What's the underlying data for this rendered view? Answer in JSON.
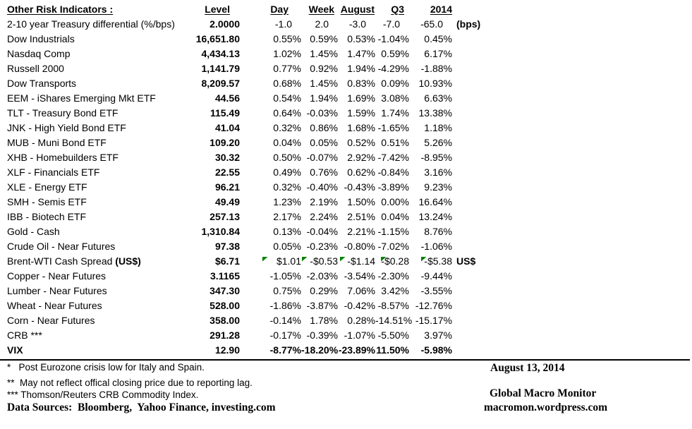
{
  "title": "Other Risk Indicators :",
  "columns": [
    "Level",
    "Day",
    "Week",
    "August",
    "Q3",
    "2014"
  ],
  "rows": [
    {
      "label": "2-10 year Treasury differential (%/bps)",
      "level": "2.0000",
      "values": [
        "-1.0",
        "2.0",
        "-3.0",
        "-7.0",
        "-65.0"
      ],
      "unit": "(bps)"
    },
    {
      "label": "Dow Industrials",
      "level": "16,651.80",
      "values": [
        "0.55%",
        "0.59%",
        "0.53%",
        "-1.04%",
        "0.45%"
      ]
    },
    {
      "label": "Nasdaq Comp",
      "level": "4,434.13",
      "values": [
        "1.02%",
        "1.45%",
        "1.47%",
        "0.59%",
        "6.17%"
      ]
    },
    {
      "label": "Russell 2000",
      "level": "1,141.79",
      "values": [
        "0.77%",
        "0.92%",
        "1.94%",
        "-4.29%",
        "-1.88%"
      ]
    },
    {
      "label": "Dow Transports",
      "level": "8,209.57",
      "values": [
        "0.68%",
        "1.45%",
        "0.83%",
        "0.09%",
        "10.93%"
      ]
    },
    {
      "label": "EEM - iShares Emerging Mkt ETF",
      "level": "44.56",
      "values": [
        "0.54%",
        "1.94%",
        "1.69%",
        "3.08%",
        "6.63%"
      ]
    },
    {
      "label": "TLT - Treasury Bond ETF",
      "level": "115.49",
      "values": [
        "0.64%",
        "-0.03%",
        "1.59%",
        "1.74%",
        "13.38%"
      ]
    },
    {
      "label": "JNK - High Yield Bond ETF",
      "level": "41.04",
      "values": [
        "0.32%",
        "0.86%",
        "1.68%",
        "-1.65%",
        "1.18%"
      ]
    },
    {
      "label": "MUB - Muni Bond ETF",
      "level": "109.20",
      "values": [
        "0.04%",
        "0.05%",
        "0.52%",
        "0.51%",
        "5.26%"
      ]
    },
    {
      "label": "XHB - Homebuilders ETF",
      "level": "30.32",
      "values": [
        "0.50%",
        "-0.07%",
        "2.92%",
        "-7.42%",
        "-8.95%"
      ]
    },
    {
      "label": "XLF - Financials ETF",
      "level": "22.55",
      "values": [
        "0.49%",
        "0.76%",
        "0.62%",
        "-0.84%",
        "3.16%"
      ]
    },
    {
      "label": "XLE - Energy ETF",
      "level": "96.21",
      "values": [
        "0.32%",
        "-0.40%",
        "-0.43%",
        "-3.89%",
        "9.23%"
      ]
    },
    {
      "label": "SMH - Semis ETF",
      "level": "49.49",
      "values": [
        "1.23%",
        "2.19%",
        "1.50%",
        "0.00%",
        "16.64%"
      ]
    },
    {
      "label": "IBB - Biotech ETF",
      "level": "257.13",
      "values": [
        "2.17%",
        "2.24%",
        "2.51%",
        "0.04%",
        "13.24%"
      ]
    },
    {
      "label": "Gold - Cash",
      "level": "1,310.84",
      "values": [
        "0.13%",
        "-0.04%",
        "2.21%",
        "-1.15%",
        "8.76%"
      ]
    },
    {
      "label": "Crude Oil - Near Futures",
      "level": "97.38",
      "values": [
        "0.05%",
        "-0.23%",
        "-0.80%",
        "-7.02%",
        "-1.06%"
      ]
    },
    {
      "label": "Brent-WTI Cash Spread ",
      "label_bold": "(US$)",
      "level": "$6.71",
      "values": [
        "$1.01",
        "-$0.53",
        "-$1.14",
        "-$0.28",
        "-$5.38"
      ],
      "unit": "US$",
      "comment_flags": true
    },
    {
      "label": "Copper - Near Futures",
      "level": "3.1165",
      "values": [
        "-1.05%",
        "-2.03%",
        "-3.54%",
        "-2.30%",
        "-9.44%"
      ]
    },
    {
      "label": "Lumber - Near Futures",
      "level": "347.30",
      "values": [
        "0.75%",
        "0.29%",
        "7.06%",
        "3.42%",
        "-3.55%"
      ]
    },
    {
      "label": "Wheat - Near Futures",
      "level": "528.00",
      "values": [
        "-1.86%",
        "-3.87%",
        "-0.42%",
        "-8.57%",
        "-12.76%"
      ]
    },
    {
      "label": "Corn - Near Futures",
      "level": "358.00",
      "values": [
        "-0.14%",
        "1.78%",
        "0.28%",
        "-14.51%",
        "-15.17%"
      ]
    },
    {
      "label": "CRB ***",
      "level": "291.28",
      "values": [
        "-0.17%",
        "-0.39%",
        "-1.07%",
        "-5.50%",
        "3.97%"
      ]
    },
    {
      "label": "VIX",
      "level": "12.90",
      "values": [
        "-8.77%",
        "-18.20%",
        "-23.89%",
        "11.50%",
        "-5.98%"
      ],
      "bold": true
    }
  ],
  "footnotes": {
    "fn1": "*   Post Eurozone crisis low for Italy and Spain.",
    "fn2": "**  May not reflect offical closing price due to reporting lag.",
    "fn3": "*** Thomson/Reuters CRB Commodity Index."
  },
  "data_sources": "Data Sources:  Bloomberg,  Yahoo Finance, investing.com",
  "footer_right": {
    "date": "August 13, 2014",
    "brand": "Global Macro Monitor",
    "site": "macromon.wordpress.com"
  },
  "colors": {
    "text": "#000000",
    "comment_flag_green": "#008000",
    "background": "#ffffff"
  }
}
